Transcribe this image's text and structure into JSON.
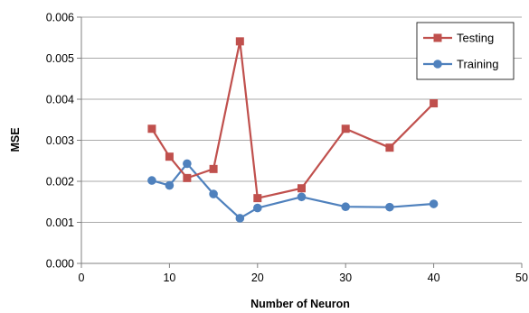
{
  "chart_data": {
    "type": "line",
    "xlabel": "Number of Neuron",
    "ylabel": "MSE",
    "xlim": [
      0,
      50
    ],
    "ylim": [
      0,
      0.006
    ],
    "x_ticks": [
      0,
      10,
      20,
      30,
      40,
      50
    ],
    "y_ticks": [
      "0.000",
      "0.001",
      "0.002",
      "0.003",
      "0.004",
      "0.005",
      "0.006"
    ],
    "grid": "horizontal",
    "legend_position": "top-right",
    "series": [
      {
        "name": "Testing",
        "color": "#c0504d",
        "marker": "square",
        "x": [
          8,
          10,
          12,
          15,
          18,
          20,
          25,
          30,
          35,
          40
        ],
        "values": [
          0.00328,
          0.0026,
          0.00208,
          0.0023,
          0.00541,
          0.00159,
          0.00183,
          0.00328,
          0.00282,
          0.0039
        ]
      },
      {
        "name": "Training",
        "color": "#4f81bd",
        "marker": "circle",
        "x": [
          8,
          10,
          12,
          15,
          18,
          20,
          25,
          30,
          35,
          40
        ],
        "values": [
          0.00202,
          0.0019,
          0.00243,
          0.00169,
          0.0011,
          0.00135,
          0.00162,
          0.00138,
          0.00137,
          0.00145
        ]
      }
    ]
  }
}
